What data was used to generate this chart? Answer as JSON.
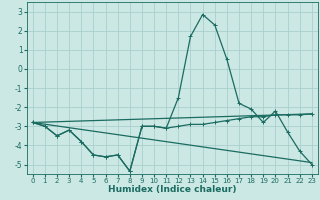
{
  "xlabel": "Humidex (Indice chaleur)",
  "bg_color": "#cce8e5",
  "grid_color": "#aad0cc",
  "line_color": "#1a6b60",
  "xlim": [
    -0.5,
    23.5
  ],
  "ylim": [
    -5.5,
    3.5
  ],
  "xticks": [
    0,
    1,
    2,
    3,
    4,
    5,
    6,
    7,
    8,
    9,
    10,
    11,
    12,
    13,
    14,
    15,
    16,
    17,
    18,
    19,
    20,
    21,
    22,
    23
  ],
  "yticks": [
    -5,
    -4,
    -3,
    -2,
    -1,
    0,
    1,
    2,
    3
  ],
  "line1_x": [
    0,
    1,
    2,
    3,
    4,
    5,
    6,
    7,
    8,
    9,
    10,
    11,
    12,
    13,
    14,
    15,
    16,
    17,
    18,
    19,
    20,
    21,
    22,
    23
  ],
  "line1_y": [
    -2.8,
    -3.0,
    -3.5,
    -3.2,
    -3.8,
    -4.5,
    -4.6,
    -4.5,
    -5.35,
    -3.0,
    -3.0,
    -3.1,
    -1.5,
    1.7,
    2.85,
    2.3,
    0.5,
    -1.8,
    -2.1,
    -2.8,
    -2.2,
    -3.3,
    -4.3,
    -5.0
  ],
  "line2_x": [
    0,
    1,
    2,
    3,
    4,
    5,
    6,
    7,
    8,
    9,
    10,
    11,
    12,
    13,
    14,
    15,
    16,
    17,
    18,
    19,
    20,
    21,
    22,
    23
  ],
  "line2_y": [
    -2.8,
    -3.0,
    -3.5,
    -3.2,
    -3.8,
    -4.5,
    -4.6,
    -4.5,
    -5.35,
    -3.0,
    -3.0,
    -3.1,
    -3.0,
    -2.9,
    -2.9,
    -2.8,
    -2.7,
    -2.6,
    -2.5,
    -2.5,
    -2.4,
    -2.4,
    -2.4,
    -2.35
  ],
  "line3_x": [
    0,
    23
  ],
  "line3_y": [
    -2.8,
    -4.9
  ],
  "line4_x": [
    0,
    23
  ],
  "line4_y": [
    -2.8,
    -2.35
  ]
}
